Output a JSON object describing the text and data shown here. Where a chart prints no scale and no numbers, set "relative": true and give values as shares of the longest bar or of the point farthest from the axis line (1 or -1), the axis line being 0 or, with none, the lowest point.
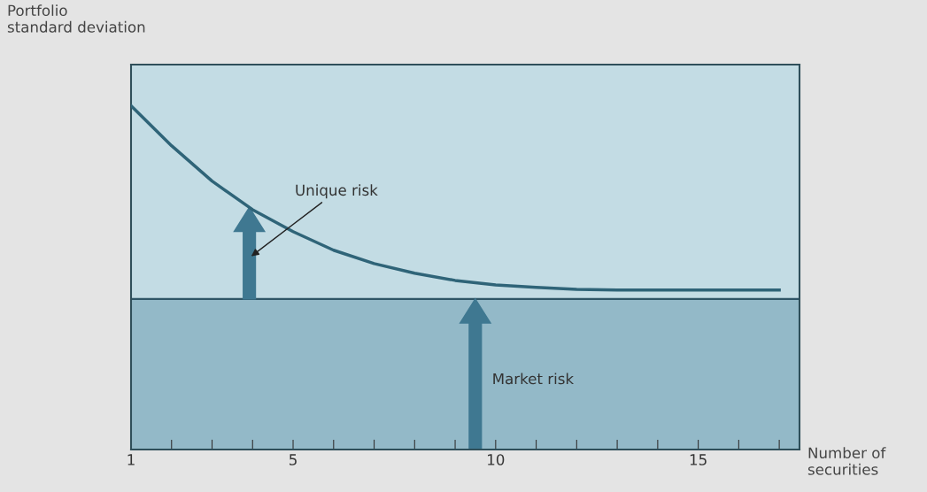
{
  "chart_data": {
    "type": "line",
    "relative": true,
    "ylabel": "Portfolio\nstandard deviation",
    "xlabel": "Number of\nsecurities",
    "x": [
      1,
      2,
      3,
      4,
      5,
      6,
      7,
      8,
      9,
      10,
      11,
      12,
      13,
      14,
      15,
      16,
      17
    ],
    "series": [
      {
        "color": "#2f6478",
        "values": [
          1.0,
          0.884,
          0.781,
          0.698,
          0.634,
          0.58,
          0.541,
          0.513,
          0.492,
          0.479,
          0.472,
          0.466,
          0.464,
          0.464,
          0.464,
          0.464,
          0.464
        ]
      }
    ],
    "xlim": [
      1,
      17.5
    ],
    "xticks": [
      1,
      {
        "value": 2,
        "label": null
      },
      {
        "value": 3,
        "label": null
      },
      {
        "value": 4,
        "label": null
      },
      5,
      {
        "value": 6,
        "label": null
      },
      {
        "value": 7,
        "label": null
      },
      {
        "value": 8,
        "label": null
      },
      {
        "value": 9,
        "label": null
      },
      10,
      {
        "value": 11,
        "label": null
      },
      {
        "value": 12,
        "label": null
      },
      {
        "value": 13,
        "label": null
      },
      {
        "value": 14,
        "label": null
      },
      15,
      {
        "value": 16,
        "label": null
      },
      {
        "value": 17,
        "label": null
      }
    ],
    "ref_lines": [
      {
        "axis": "y",
        "value": 0.438,
        "color": "#2f5566"
      }
    ],
    "bands": [
      {
        "axis": "y",
        "from": 0,
        "to": 0.438,
        "color": "#93b9c8"
      }
    ],
    "annotations": [
      "Unique risk",
      "Market risk"
    ],
    "grid": false,
    "legend": false,
    "marker": "none",
    "line_style": "solid"
  }
}
